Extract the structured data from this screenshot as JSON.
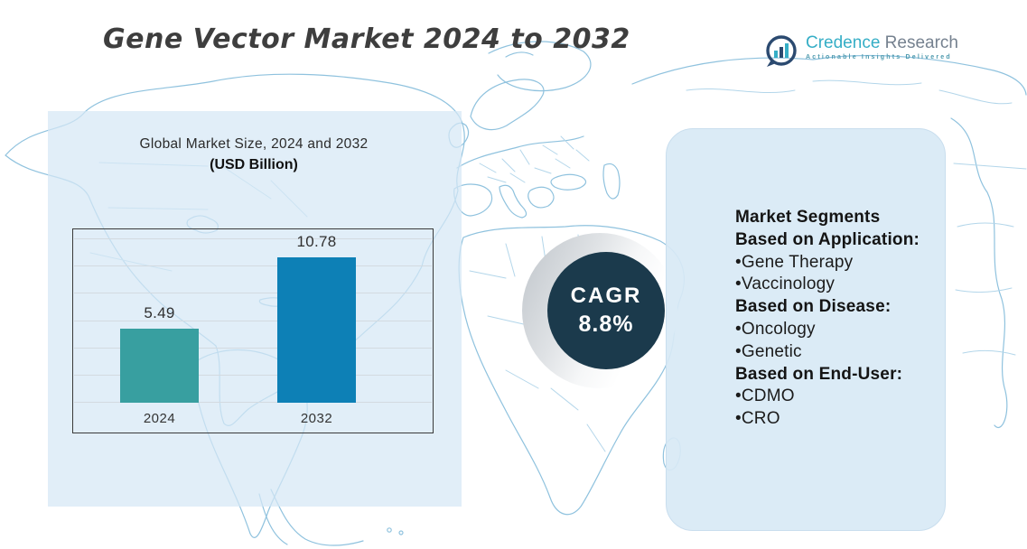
{
  "page": {
    "title": "Gene Vector Market 2024 to 2032"
  },
  "logo": {
    "brand_primary": "Credence",
    "brand_secondary": "Research",
    "tagline": "Actionable Insights Delivered"
  },
  "chart": {
    "title": "Global Market Size, 2024 and 2032",
    "subtitle": "(USD Billion)"
  },
  "chart_data": {
    "type": "bar",
    "categories": [
      "2024",
      "2032"
    ],
    "values": [
      5.49,
      10.78
    ],
    "data_labels": [
      "5.49",
      "10.78"
    ],
    "title": "Global Market Size, 2024 and 2032",
    "subtitle": "(USD Billion)",
    "xlabel": "",
    "ylabel": "",
    "ylim": [
      0,
      13
    ],
    "grid": true,
    "gridline_count": 7,
    "legend": "none",
    "bar_colors": [
      "#389FA0",
      "#0D80B6"
    ]
  },
  "cagr": {
    "label": "CAGR",
    "value": "8.8%"
  },
  "segments": {
    "items": [
      {
        "text": "Market Segments",
        "bold": true
      },
      {
        "text": "Based on Application:",
        "bold": true
      },
      {
        "text": "•Gene Therapy",
        "bold": false
      },
      {
        "text": "•Vaccinology",
        "bold": false
      },
      {
        "text": "Based on Disease:",
        "bold": true
      },
      {
        "text": "•Oncology",
        "bold": false
      },
      {
        "text": "•Genetic",
        "bold": false
      },
      {
        "text": "Based on End-User:",
        "bold": true
      },
      {
        "text": "•CDMO",
        "bold": false
      },
      {
        "text": "•CRO",
        "bold": false
      }
    ]
  },
  "colors": {
    "bar_2024": "#389FA0",
    "bar_2032": "#0D80B6",
    "cagr_circle": "#1B3A4C",
    "map_coast": "#8FC2DE",
    "map_border": "#B3D6EA",
    "panel_left": "#E2EDF6",
    "panel_right": "#DCEBF5",
    "title_text": "#3E3E3E",
    "logo_teal": "#35AEC6",
    "logo_navy": "#2B4A70",
    "logo_gray": "#75818F"
  }
}
